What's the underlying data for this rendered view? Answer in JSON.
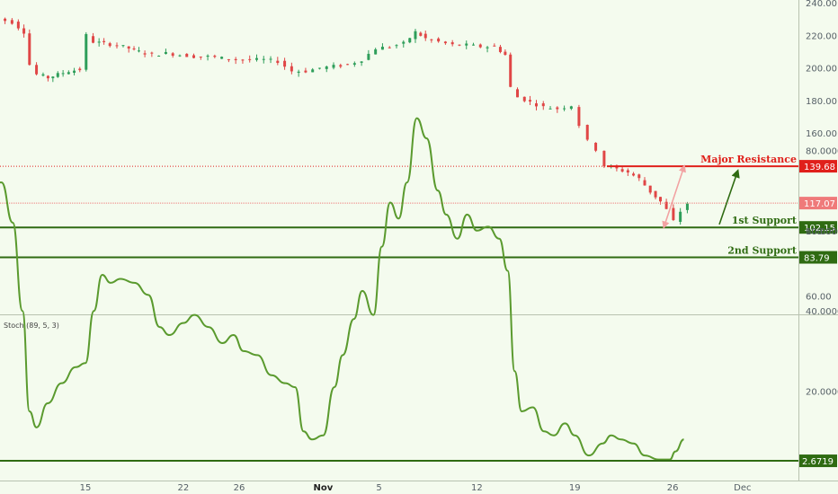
{
  "chart_data": [
    {
      "type": "candlestick",
      "price_ticks": [
        "240.00",
        "220.00",
        "200.00",
        "180.00",
        "160.00",
        "100.00",
        "60.00"
      ],
      "price_tick_values": [
        240,
        220,
        200,
        180,
        160,
        100,
        60
      ],
      "ylim": [
        51,
        241
      ],
      "date_labels": [
        "15",
        "22",
        "26",
        "Nov",
        "5",
        "12",
        "19",
        "26",
        "Dec"
      ],
      "date_label_days": [
        15,
        22,
        26,
        32,
        36,
        43,
        50,
        57,
        62
      ],
      "last_price": "117.07",
      "last_price_value": 117.07,
      "levels": [
        {
          "label": "Major Resistance",
          "value": 139.68,
          "tag": "139.68",
          "color": "#e0201b"
        },
        {
          "label": "1st Support",
          "value": 102.15,
          "tag": "102.15",
          "color": "#2f6b12"
        },
        {
          "label": "2nd Support",
          "value": 83.79,
          "tag": "83.79",
          "color": "#2f6b12"
        }
      ],
      "close_series": [
        {
          "day": 8.0,
          "close": 232
        },
        {
          "day": 9.0,
          "close": 230
        },
        {
          "day": 10.0,
          "close": 228
        },
        {
          "day": 10.8,
          "close": 222
        },
        {
          "day": 11.2,
          "close": 202
        },
        {
          "day": 11.8,
          "close": 196
        },
        {
          "day": 12.5,
          "close": 194
        },
        {
          "day": 13.2,
          "close": 196
        },
        {
          "day": 14.0,
          "close": 198
        },
        {
          "day": 14.8,
          "close": 199
        },
        {
          "day": 15.3,
          "close": 220
        },
        {
          "day": 15.8,
          "close": 216
        },
        {
          "day": 16.5,
          "close": 215
        },
        {
          "day": 17.5,
          "close": 214
        },
        {
          "day": 18.3,
          "close": 212
        },
        {
          "day": 19.0,
          "close": 210
        },
        {
          "day": 20.0,
          "close": 208
        },
        {
          "day": 21.0,
          "close": 209
        },
        {
          "day": 22.0,
          "close": 208
        },
        {
          "day": 23.0,
          "close": 207
        },
        {
          "day": 24.0,
          "close": 207
        },
        {
          "day": 25.0,
          "close": 206
        },
        {
          "day": 26.0,
          "close": 205
        },
        {
          "day": 27.0,
          "close": 205
        },
        {
          "day": 28.0,
          "close": 205
        },
        {
          "day": 29.0,
          "close": 204
        },
        {
          "day": 30.0,
          "close": 198
        },
        {
          "day": 31.0,
          "close": 198
        },
        {
          "day": 32.0,
          "close": 200
        },
        {
          "day": 33.0,
          "close": 201
        },
        {
          "day": 34.0,
          "close": 202
        },
        {
          "day": 35.0,
          "close": 205
        },
        {
          "day": 36.0,
          "close": 212
        },
        {
          "day": 37.0,
          "close": 213
        },
        {
          "day": 38.0,
          "close": 215
        },
        {
          "day": 38.8,
          "close": 222
        },
        {
          "day": 39.5,
          "close": 218
        },
        {
          "day": 40.5,
          "close": 216
        },
        {
          "day": 41.5,
          "close": 214
        },
        {
          "day": 42.5,
          "close": 214
        },
        {
          "day": 43.5,
          "close": 213
        },
        {
          "day": 44.5,
          "close": 213
        },
        {
          "day": 45.2,
          "close": 208
        },
        {
          "day": 45.6,
          "close": 188
        },
        {
          "day": 46.2,
          "close": 182
        },
        {
          "day": 47.0,
          "close": 179
        },
        {
          "day": 48.0,
          "close": 176
        },
        {
          "day": 49.0,
          "close": 175
        },
        {
          "day": 50.0,
          "close": 177
        },
        {
          "day": 50.6,
          "close": 165
        },
        {
          "day": 51.2,
          "close": 155
        },
        {
          "day": 51.8,
          "close": 150
        },
        {
          "day": 52.4,
          "close": 140
        },
        {
          "day": 53.2,
          "close": 138
        },
        {
          "day": 54.0,
          "close": 136
        },
        {
          "day": 54.8,
          "close": 132
        },
        {
          "day": 55.6,
          "close": 124
        },
        {
          "day": 56.3,
          "close": 118
        },
        {
          "day": 56.8,
          "close": 113
        },
        {
          "day": 57.3,
          "close": 106
        },
        {
          "day": 57.8,
          "close": 112
        },
        {
          "day": 58.3,
          "close": 117
        }
      ]
    },
    {
      "type": "line",
      "indicator_label": "Stoch (89, 5, 3)",
      "ticks": [
        "80.0000",
        "60.0000",
        "40.0000",
        "20.0000"
      ],
      "tick_values": [
        80,
        60,
        40,
        20
      ],
      "ylim": [
        0,
        98
      ],
      "level": {
        "value": 2.6719,
        "tag": "2.6719"
      },
      "series": [
        {
          "day": 7.5,
          "value": 64
        },
        {
          "day": 8.3,
          "value": 72
        },
        {
          "day": 9.0,
          "value": 72
        },
        {
          "day": 9.8,
          "value": 62
        },
        {
          "day": 10.5,
          "value": 40
        },
        {
          "day": 11.0,
          "value": 15
        },
        {
          "day": 11.5,
          "value": 11
        },
        {
          "day": 12.3,
          "value": 17
        },
        {
          "day": 13.3,
          "value": 22
        },
        {
          "day": 14.3,
          "value": 26
        },
        {
          "day": 15.0,
          "value": 27
        },
        {
          "day": 15.6,
          "value": 40
        },
        {
          "day": 16.2,
          "value": 49
        },
        {
          "day": 16.8,
          "value": 47
        },
        {
          "day": 17.5,
          "value": 48
        },
        {
          "day": 18.5,
          "value": 47
        },
        {
          "day": 19.5,
          "value": 44
        },
        {
          "day": 20.3,
          "value": 36
        },
        {
          "day": 21.0,
          "value": 34
        },
        {
          "day": 22.0,
          "value": 37
        },
        {
          "day": 22.8,
          "value": 39
        },
        {
          "day": 23.8,
          "value": 36
        },
        {
          "day": 24.8,
          "value": 32
        },
        {
          "day": 25.6,
          "value": 34
        },
        {
          "day": 26.3,
          "value": 30
        },
        {
          "day": 27.3,
          "value": 29
        },
        {
          "day": 28.3,
          "value": 24
        },
        {
          "day": 29.3,
          "value": 22
        },
        {
          "day": 30.0,
          "value": 21
        },
        {
          "day": 30.6,
          "value": 10
        },
        {
          "day": 31.2,
          "value": 8
        },
        {
          "day": 32.0,
          "value": 9
        },
        {
          "day": 32.8,
          "value": 21
        },
        {
          "day": 33.4,
          "value": 29
        },
        {
          "day": 34.2,
          "value": 38
        },
        {
          "day": 34.8,
          "value": 45
        },
        {
          "day": 35.6,
          "value": 39
        },
        {
          "day": 36.2,
          "value": 56
        },
        {
          "day": 36.8,
          "value": 67
        },
        {
          "day": 37.4,
          "value": 63
        },
        {
          "day": 38.0,
          "value": 72
        },
        {
          "day": 38.7,
          "value": 88
        },
        {
          "day": 39.4,
          "value": 83
        },
        {
          "day": 40.2,
          "value": 70
        },
        {
          "day": 40.8,
          "value": 64
        },
        {
          "day": 41.6,
          "value": 58
        },
        {
          "day": 42.3,
          "value": 64
        },
        {
          "day": 43.0,
          "value": 60
        },
        {
          "day": 43.8,
          "value": 61
        },
        {
          "day": 44.6,
          "value": 58
        },
        {
          "day": 45.2,
          "value": 50
        },
        {
          "day": 45.7,
          "value": 25
        },
        {
          "day": 46.2,
          "value": 15
        },
        {
          "day": 47.0,
          "value": 16
        },
        {
          "day": 47.8,
          "value": 10
        },
        {
          "day": 48.5,
          "value": 9
        },
        {
          "day": 49.3,
          "value": 12
        },
        {
          "day": 50.0,
          "value": 9
        },
        {
          "day": 51.0,
          "value": 4
        },
        {
          "day": 52.0,
          "value": 7
        },
        {
          "day": 52.6,
          "value": 9
        },
        {
          "day": 53.3,
          "value": 8
        },
        {
          "day": 54.2,
          "value": 7
        },
        {
          "day": 55.0,
          "value": 4
        },
        {
          "day": 56.0,
          "value": 3
        },
        {
          "day": 56.8,
          "value": 3
        },
        {
          "day": 57.2,
          "value": 5
        },
        {
          "day": 57.8,
          "value": 8
        }
      ]
    }
  ],
  "colors": {
    "background": "#f4fbee",
    "candle_up": "#2e9e5a",
    "candle_down": "#e04646",
    "resistance": "#e0201b",
    "support": "#2f6b12",
    "stoch_line": "#5a9a2e",
    "price_tag": "#ef7a7a",
    "arrow_pink": "#f2a2a2"
  }
}
